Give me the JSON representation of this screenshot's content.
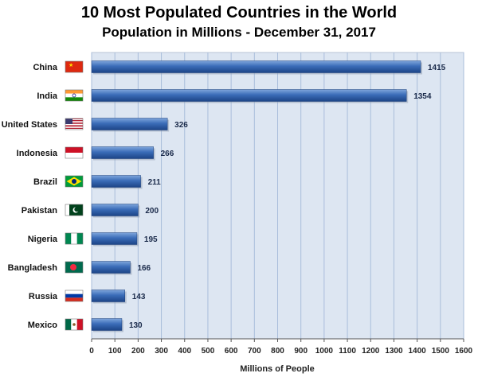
{
  "chart_data": {
    "type": "bar",
    "orientation": "horizontal",
    "title": "10 Most Populated Countries in the World",
    "subtitle": "Population in Millions  -  December 31, 2017",
    "xlabel": "Millions of People",
    "xlim": [
      0,
      1600
    ],
    "x_ticks": [
      0,
      100,
      200,
      300,
      400,
      500,
      600,
      700,
      800,
      900,
      1000,
      1100,
      1200,
      1300,
      1400,
      1500,
      1600
    ],
    "grid": true,
    "categories": [
      "China",
      "India",
      "United States",
      "Indonesia",
      "Brazil",
      "Pakistan",
      "Nigeria",
      "Bangladesh",
      "Russia",
      "Mexico"
    ],
    "values": [
      1415,
      1354,
      326,
      266,
      211,
      200,
      195,
      166,
      143,
      130
    ],
    "flags": [
      "china-flag-icon",
      "india-flag-icon",
      "usa-flag-icon",
      "indonesia-flag-icon",
      "brazil-flag-icon",
      "pakistan-flag-icon",
      "nigeria-flag-icon",
      "bangladesh-flag-icon",
      "russia-flag-icon",
      "mexico-flag-icon"
    ],
    "bar_color": "#2e5fa8",
    "plot_background": "#dde6f2"
  }
}
